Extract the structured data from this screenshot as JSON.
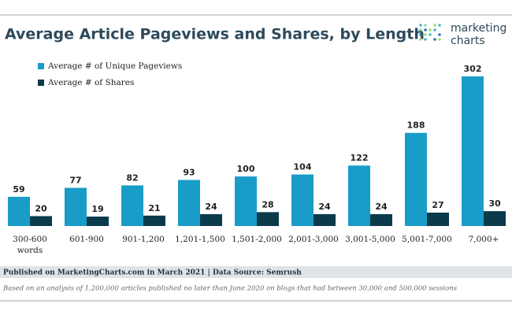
{
  "chart_data": {
    "type": "bar",
    "title": "Average Article Pageviews and Shares, by Length",
    "categories": [
      "300-600 words",
      "601-900",
      "901-1,200",
      "1,201-1,500",
      "1,501-2,000",
      "2,001-3,000",
      "3,001-5,000",
      "5,001-7,000",
      "7,000+"
    ],
    "series": [
      {
        "name": "Average # of Unique Pageviews",
        "color": "#1a9cc8",
        "values": [
          59,
          77,
          82,
          93,
          100,
          104,
          122,
          188,
          302
        ]
      },
      {
        "name": "Average # of Shares",
        "color": "#0b3a4b",
        "values": [
          20,
          19,
          21,
          24,
          28,
          24,
          24,
          27,
          30
        ]
      }
    ],
    "legend": "top-left"
  },
  "logo": [
    "marketing",
    "charts"
  ],
  "footer": {
    "source": "Published on MarketingCharts.com in March 2021 | Data Source: Semrush",
    "note": "Based on an analysis of 1,200,000 articles published no later than June 2020 on blogs that had between 30,000 and 500,000 sessions"
  }
}
